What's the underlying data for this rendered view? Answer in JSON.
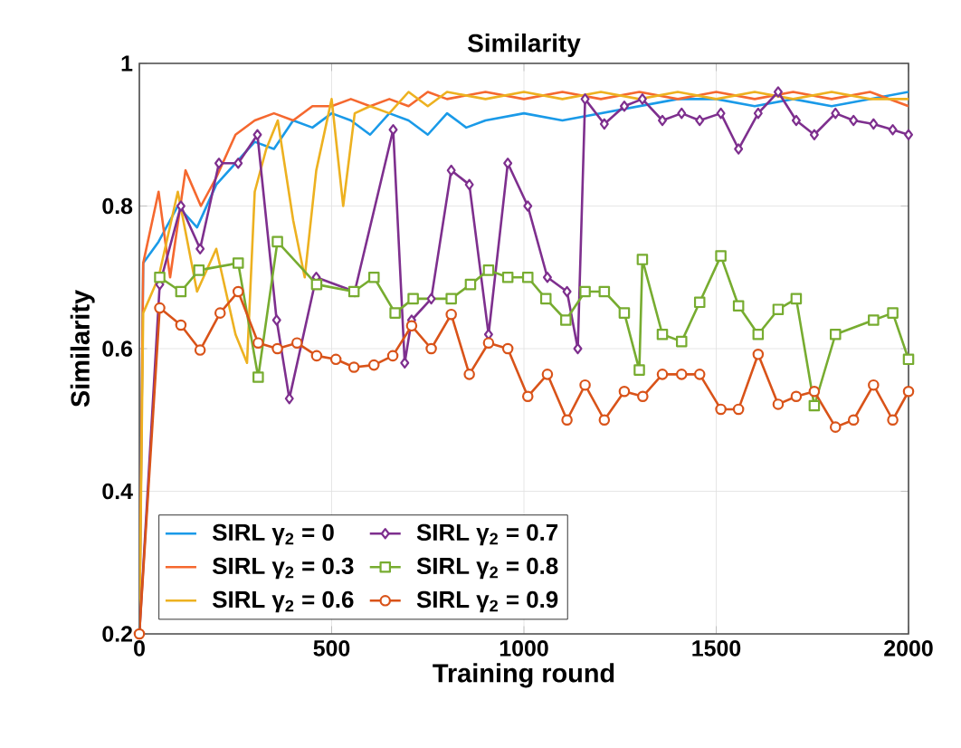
{
  "chart_data": {
    "type": "line",
    "title": "Similarity",
    "xlabel": "Training round",
    "ylabel": "Similarity",
    "xlim": [
      0,
      2000
    ],
    "ylim": [
      0.2,
      1
    ],
    "xticks": [
      0,
      500,
      1000,
      1500,
      2000
    ],
    "yticks": [
      0.2,
      0.4,
      0.6,
      0.8,
      1
    ],
    "grid": true,
    "legend": "bottom left",
    "line_style": "solid",
    "series": [
      {
        "name": "SIRL γ$_{2}$ = 0",
        "color": "#1a9ae8",
        "marker": "none",
        "x": [
          0,
          10,
          50,
          100,
          150,
          200,
          250,
          300,
          350,
          400,
          450,
          500,
          550,
          600,
          650,
          700,
          750,
          800,
          850,
          900,
          1000,
          1100,
          1200,
          1300,
          1400,
          1500,
          1600,
          1700,
          1800,
          1900,
          2000
        ],
        "values": [
          0.2,
          0.72,
          0.75,
          0.8,
          0.77,
          0.83,
          0.86,
          0.89,
          0.88,
          0.92,
          0.91,
          0.93,
          0.92,
          0.9,
          0.93,
          0.92,
          0.9,
          0.93,
          0.91,
          0.92,
          0.93,
          0.92,
          0.93,
          0.94,
          0.95,
          0.95,
          0.94,
          0.95,
          0.94,
          0.95,
          0.96
        ]
      },
      {
        "name": "SIRL γ$_{2}$ = 0.3",
        "color": "#f5682f",
        "marker": "none",
        "x": [
          0,
          10,
          50,
          80,
          120,
          160,
          200,
          250,
          300,
          350,
          400,
          450,
          500,
          550,
          600,
          650,
          700,
          750,
          800,
          900,
          1000,
          1100,
          1200,
          1300,
          1400,
          1500,
          1600,
          1700,
          1800,
          1900,
          2000
        ],
        "values": [
          0.2,
          0.72,
          0.82,
          0.7,
          0.85,
          0.8,
          0.84,
          0.9,
          0.92,
          0.93,
          0.92,
          0.94,
          0.94,
          0.95,
          0.94,
          0.95,
          0.94,
          0.96,
          0.95,
          0.96,
          0.95,
          0.96,
          0.95,
          0.96,
          0.95,
          0.96,
          0.95,
          0.96,
          0.95,
          0.96,
          0.94
        ]
      },
      {
        "name": "SIRL γ$_{2}$ = 0.6",
        "color": "#edb120",
        "marker": "none",
        "x": [
          0,
          10,
          50,
          100,
          150,
          200,
          250,
          280,
          300,
          330,
          360,
          400,
          430,
          460,
          500,
          530,
          560,
          600,
          650,
          700,
          750,
          800,
          900,
          1000,
          1100,
          1200,
          1300,
          1400,
          1500,
          1600,
          1700,
          1800,
          1900,
          2000
        ],
        "values": [
          0.2,
          0.65,
          0.7,
          0.82,
          0.68,
          0.74,
          0.62,
          0.58,
          0.82,
          0.88,
          0.92,
          0.78,
          0.7,
          0.85,
          0.95,
          0.8,
          0.93,
          0.94,
          0.93,
          0.96,
          0.94,
          0.96,
          0.95,
          0.96,
          0.95,
          0.96,
          0.95,
          0.96,
          0.95,
          0.96,
          0.95,
          0.96,
          0.95,
          0.95
        ]
      },
      {
        "name": "SIRL γ$_{2}$ = 0.7",
        "color": "#7e2f8e",
        "marker": "diamond",
        "x": [
          0,
          53,
          108,
          158,
          207,
          257,
          307,
          357,
          390,
          460,
          560,
          660,
          690,
          708,
          759,
          811,
          858,
          908,
          958,
          1010,
          1061,
          1112,
          1140,
          1159,
          1209,
          1261,
          1308,
          1360,
          1410,
          1457,
          1512,
          1558,
          1609,
          1661,
          1708,
          1755,
          1810,
          1857,
          1909,
          1959,
          2000
        ],
        "values": [
          0.2,
          0.69,
          0.8,
          0.74,
          0.86,
          0.86,
          0.9,
          0.64,
          0.53,
          0.7,
          0.68,
          0.907,
          0.58,
          0.64,
          0.67,
          0.85,
          0.83,
          0.62,
          0.86,
          0.8,
          0.7,
          0.68,
          0.6,
          0.95,
          0.915,
          0.94,
          0.95,
          0.92,
          0.93,
          0.92,
          0.93,
          0.88,
          0.93,
          0.96,
          0.92,
          0.9,
          0.93,
          0.92,
          0.915,
          0.907,
          0.9
        ]
      },
      {
        "name": "SIRL γ$_{2}$ = 0.8",
        "color": "#77ac30",
        "marker": "square",
        "x": [
          53,
          108,
          155,
          257,
          309,
          359,
          461,
          558,
          610,
          665,
          712,
          811,
          861,
          908,
          958,
          1010,
          1057,
          1109,
          1159,
          1209,
          1261,
          1300,
          1308,
          1360,
          1410,
          1457,
          1512,
          1558,
          1609,
          1661,
          1708,
          1755,
          1810,
          1909,
          1959,
          2000
        ],
        "values": [
          0.7,
          0.68,
          0.71,
          0.72,
          0.56,
          0.75,
          0.69,
          0.68,
          0.7,
          0.65,
          0.67,
          0.67,
          0.69,
          0.71,
          0.7,
          0.7,
          0.67,
          0.64,
          0.68,
          0.68,
          0.65,
          0.57,
          0.725,
          0.62,
          0.61,
          0.665,
          0.73,
          0.66,
          0.62,
          0.655,
          0.67,
          0.52,
          0.62,
          0.64,
          0.65,
          0.585
        ]
      },
      {
        "name": "SIRL γ$_{2}$ = 0.9",
        "color": "#d95319",
        "marker": "circle",
        "x": [
          0,
          53,
          108,
          158,
          210,
          257,
          309,
          359,
          410,
          461,
          511,
          558,
          610,
          659,
          708,
          759,
          811,
          858,
          908,
          958,
          1010,
          1061,
          1112,
          1159,
          1209,
          1261,
          1309,
          1360,
          1410,
          1457,
          1512,
          1558,
          1609,
          1661,
          1708,
          1755,
          1810,
          1857,
          1909,
          1959,
          2000
        ],
        "values": [
          0.2,
          0.657,
          0.633,
          0.598,
          0.65,
          0.68,
          0.608,
          0.6,
          0.608,
          0.59,
          0.585,
          0.574,
          0.577,
          0.59,
          0.632,
          0.6,
          0.648,
          0.564,
          0.608,
          0.6,
          0.533,
          0.564,
          0.5,
          0.549,
          0.5,
          0.54,
          0.533,
          0.564,
          0.564,
          0.564,
          0.515,
          0.515,
          0.592,
          0.522,
          0.533,
          0.54,
          0.49,
          0.5,
          0.549,
          0.5,
          0.54
        ]
      }
    ]
  }
}
